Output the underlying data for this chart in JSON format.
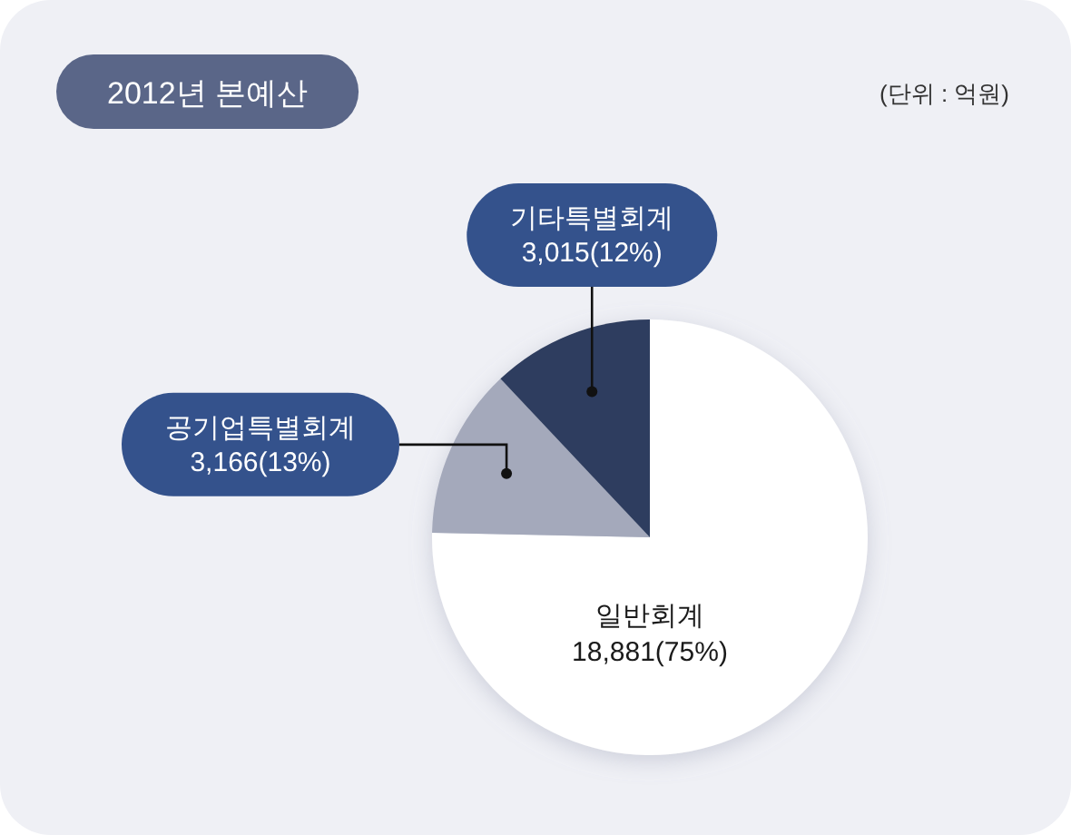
{
  "chart_data": {
    "type": "pie",
    "title": "2012년 본예산",
    "annotations": [
      "(단위 : 억원)"
    ],
    "categories": [
      "일반회계",
      "공기업특별회계",
      "기타특별회계"
    ],
    "values": [
      18881,
      3166,
      3015
    ],
    "colors": [
      "#ffffff",
      "#a4a9bb",
      "#2d3d5e"
    ],
    "value_labels": [
      "18,881(75%)",
      "3,166(13%)",
      "3,015(12%)"
    ]
  }
}
